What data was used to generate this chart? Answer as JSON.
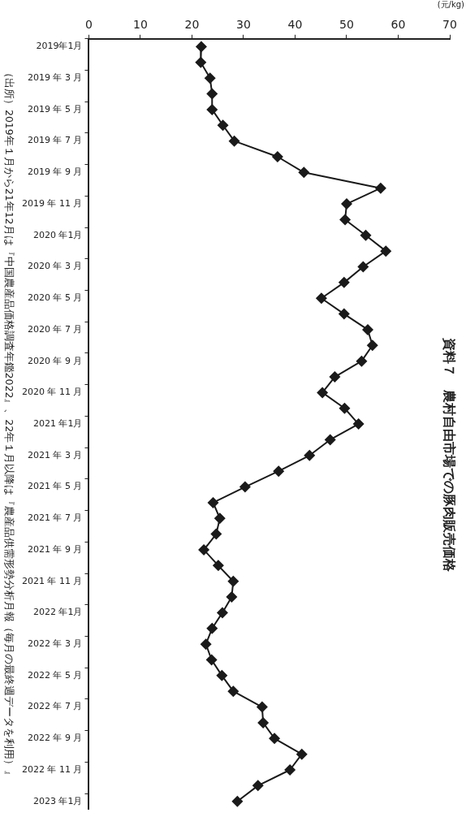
{
  "chart_data": {
    "type": "line",
    "title": "資料７　農村自由市場での豚肉販売価格",
    "xlabel": "(元/kg)",
    "orientation": "horizontal",
    "categories": [
      "2019年1月",
      null,
      "2019 年 3 月",
      null,
      "2019 年 5 月",
      null,
      "2019 年 7 月",
      null,
      "2019 年 9 月",
      null,
      "2019 年 11 月",
      null,
      "2020 年1月",
      null,
      "2020 年 3 月",
      null,
      "2020 年 5 月",
      null,
      "2020 年 7 月",
      null,
      "2020 年 9 月",
      null,
      "2020 年 11 月",
      null,
      "2021 年1月",
      null,
      "2021 年 3 月",
      null,
      "2021 年 5 月",
      null,
      "2021 年 7 月",
      null,
      "2021 年 9 月",
      null,
      "2021 年 11 月",
      null,
      "2022 年1月",
      null,
      "2022 年 3 月",
      null,
      "2022 年 5 月",
      null,
      "2022 年 7 月",
      null,
      "2022 年 9 月",
      null,
      "2022 年 11 月",
      null,
      "2023 年1月"
    ],
    "series": [
      {
        "color": "#1a1a1a",
        "values": [
          21.8,
          21.7,
          23.5,
          23.9,
          23.9,
          26.0,
          28.2,
          36.6,
          41.7,
          56.6,
          50.0,
          49.7,
          53.7,
          57.6,
          53.2,
          49.5,
          45.1,
          49.5,
          54.1,
          55.0,
          52.9,
          47.7,
          45.3,
          49.6,
          52.3,
          46.8,
          42.8,
          36.8,
          30.3,
          24.1,
          25.4,
          24.7,
          22.3,
          25.1,
          28.0,
          27.7,
          25.9,
          23.9,
          22.7,
          23.8,
          25.8,
          28.0,
          33.6,
          33.8,
          36.0,
          41.3,
          39.0,
          32.8,
          28.8
        ]
      }
    ],
    "xlim": [
      0,
      70
    ],
    "xticks": [
      0,
      10,
      20,
      30,
      40,
      50,
      60,
      70
    ],
    "marker": "diamond",
    "line_style": "solid",
    "annotations": [
      "（出所）2019年１月から21年12月は『中国農産品価格調査年鑑2022』、22年１月以降は『農産品供需形勢分析月報（毎月の最終週データを利用）』"
    ]
  }
}
